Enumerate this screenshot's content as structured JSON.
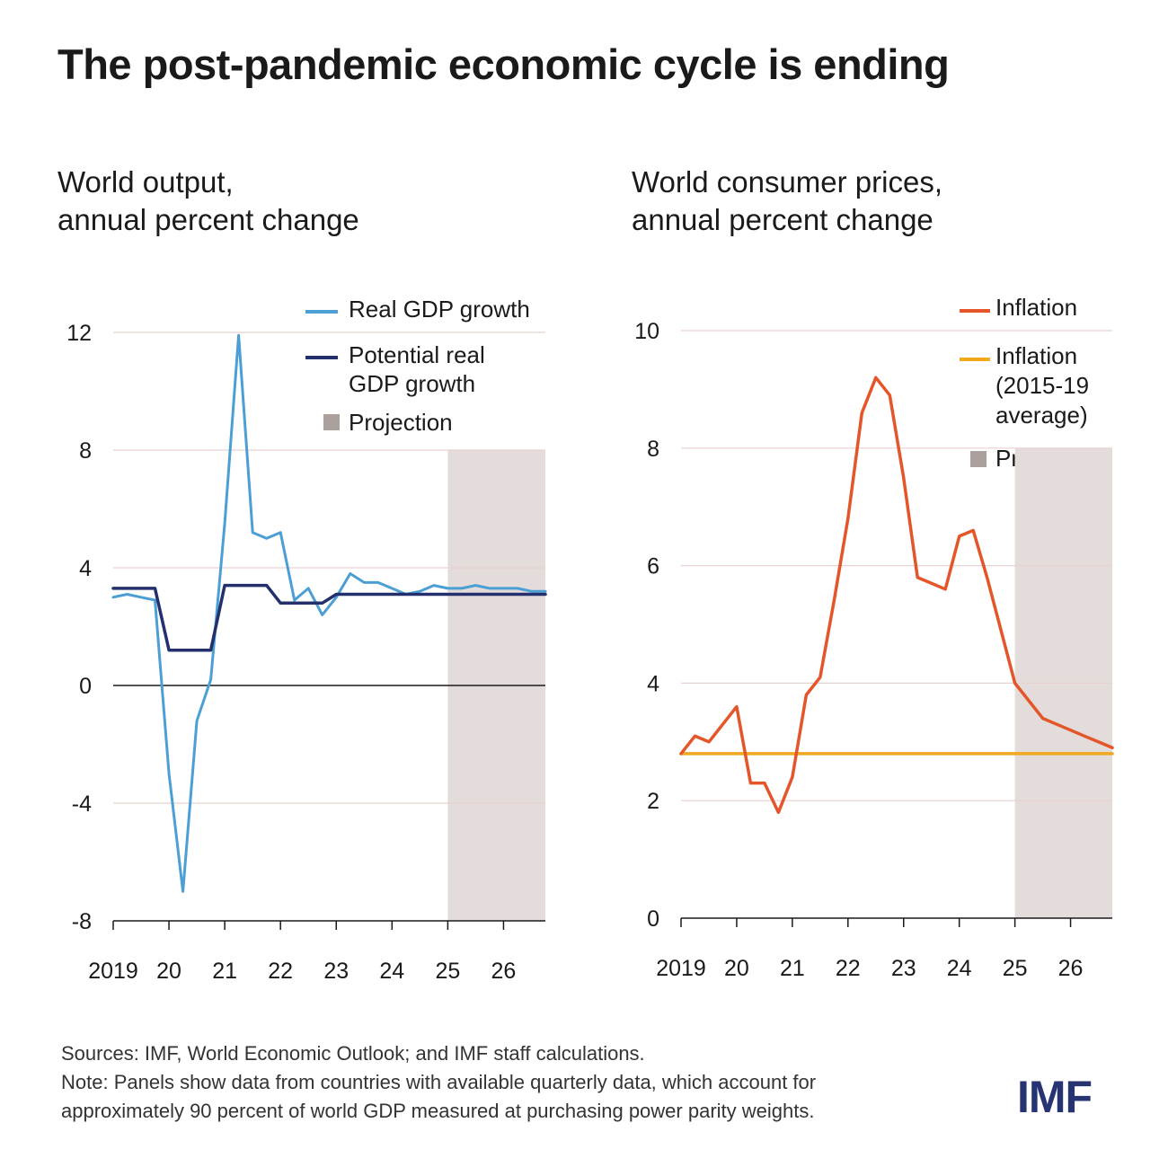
{
  "title": "The post-pandemic economic cycle is ending",
  "colors": {
    "real_gdp": "#4b9fd5",
    "potential_gdp": "#24306e",
    "inflation": "#e4562a",
    "inflation_avg": "#f2a81d",
    "projection": "#e3dcda",
    "projection_legend": "#aaa09c",
    "grid": "#e8d2cf"
  },
  "chart_data": [
    {
      "type": "line",
      "title": "World output,",
      "subtitle": "annual percent change",
      "x_tick_labels": [
        "2019",
        "20",
        "21",
        "22",
        "23",
        "24",
        "25",
        "26"
      ],
      "y_ticks": [
        12,
        8,
        4,
        0,
        -4,
        -8
      ],
      "y_tick_labels": [
        "12",
        "8",
        "4",
        "0",
        "-4",
        "-8"
      ],
      "ylim": [
        -8,
        12
      ],
      "projection_start": 2025.0,
      "legend": {
        "real": "Real GDP growth",
        "potential_1": "Potential real",
        "potential_2": "GDP growth",
        "projection": "Projection"
      },
      "series": [
        {
          "name": "Real GDP growth",
          "x": [
            2019.0,
            2019.25,
            2019.5,
            2019.75,
            2020.0,
            2020.25,
            2020.5,
            2020.75,
            2021.0,
            2021.25,
            2021.5,
            2021.75,
            2022.0,
            2022.25,
            2022.5,
            2022.75,
            2023.0,
            2023.25,
            2023.5,
            2023.75,
            2024.0,
            2024.25,
            2024.5,
            2024.75,
            2025.0,
            2025.25,
            2025.5,
            2025.75,
            2026.0,
            2026.25,
            2026.5,
            2026.75
          ],
          "y": [
            3.0,
            3.1,
            3.0,
            2.9,
            -3.0,
            -7.0,
            -1.2,
            0.2,
            5.5,
            11.9,
            5.2,
            5.0,
            5.2,
            2.9,
            3.3,
            2.4,
            3.0,
            3.8,
            3.5,
            3.5,
            3.3,
            3.1,
            3.2,
            3.4,
            3.3,
            3.3,
            3.4,
            3.3,
            3.3,
            3.3,
            3.2,
            3.2
          ]
        },
        {
          "name": "Potential real GDP growth",
          "x": [
            2019.0,
            2019.75,
            2020.0,
            2020.75,
            2021.0,
            2021.75,
            2022.0,
            2022.75,
            2023.0,
            2026.75
          ],
          "y": [
            3.3,
            3.3,
            1.2,
            1.2,
            3.4,
            3.4,
            2.8,
            2.8,
            3.1,
            3.1
          ]
        }
      ]
    },
    {
      "type": "line",
      "title": "World consumer prices,",
      "subtitle": "annual percent change",
      "x_tick_labels": [
        "2019",
        "20",
        "21",
        "22",
        "23",
        "24",
        "25",
        "26"
      ],
      "y_ticks": [
        10,
        8,
        6,
        4,
        2,
        0
      ],
      "y_tick_labels": [
        "10",
        "8",
        "6",
        "4",
        "2",
        "0"
      ],
      "ylim": [
        0,
        10
      ],
      "projection_start": 2025.0,
      "legend": {
        "inflation": "Inflation",
        "avg_1": "Inflation",
        "avg_2": "(2015-19",
        "avg_3": "average)",
        "projection": "Projection"
      },
      "series": [
        {
          "name": "Inflation",
          "x": [
            2019.0,
            2019.25,
            2019.5,
            2019.75,
            2020.0,
            2020.25,
            2020.5,
            2020.75,
            2021.0,
            2021.25,
            2021.5,
            2021.75,
            2022.0,
            2022.25,
            2022.5,
            2022.75,
            2023.0,
            2023.25,
            2023.5,
            2023.75,
            2024.0,
            2024.25,
            2024.5,
            2024.75,
            2025.0,
            2025.25,
            2025.5,
            2025.75,
            2026.0,
            2026.25,
            2026.5,
            2026.75
          ],
          "y": [
            2.8,
            3.1,
            3.0,
            3.3,
            3.6,
            2.3,
            2.3,
            1.8,
            2.4,
            3.8,
            4.1,
            5.4,
            6.8,
            8.6,
            9.2,
            8.9,
            7.5,
            5.8,
            5.7,
            5.6,
            6.5,
            6.6,
            5.8,
            4.9,
            4.0,
            3.7,
            3.4,
            3.3,
            3.2,
            3.1,
            3.0,
            2.9
          ]
        },
        {
          "name": "Inflation (2015-19 average)",
          "x": [
            2019.0,
            2026.75
          ],
          "y": [
            2.8,
            2.8
          ]
        }
      ]
    }
  ],
  "footer": {
    "sources": "Sources: IMF, World Economic Outlook; and IMF staff calculations.",
    "note_1": "Note: Panels show data from countries with available quarterly data, which account for",
    "note_2": "approximately 90 percent of world GDP measured at purchasing power parity weights."
  },
  "logo": "IMF"
}
